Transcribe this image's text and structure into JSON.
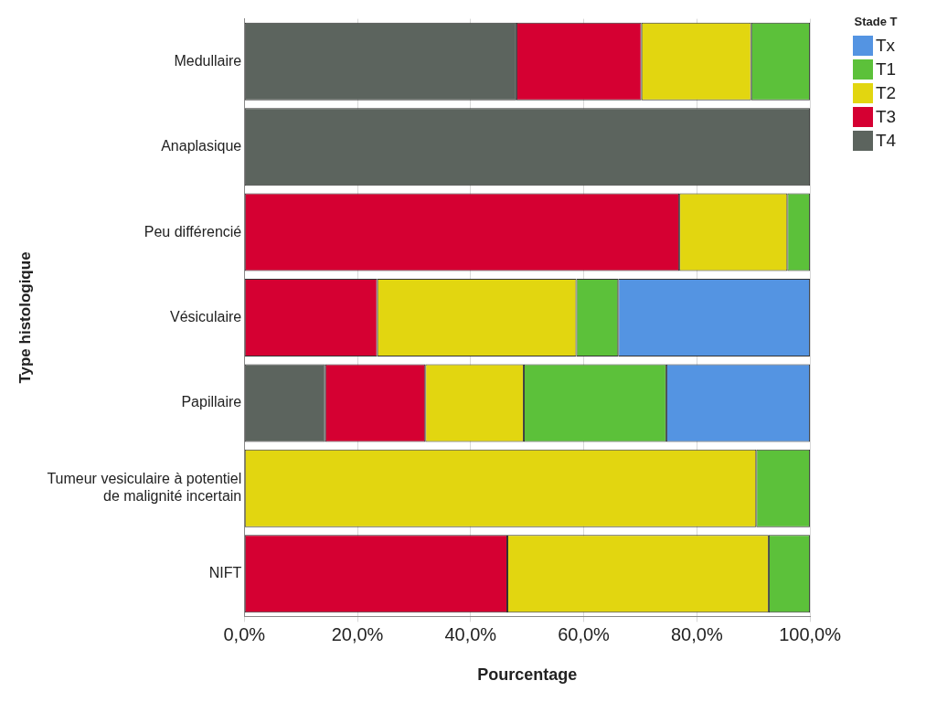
{
  "chart_data": {
    "type": "bar",
    "orientation": "horizontal",
    "stacked": true,
    "xlabel": "Pourcentage",
    "ylabel": "Type histologique",
    "legend_title": "Stade T",
    "legend": "top right",
    "grid": "x",
    "categories": [
      "Medullaire",
      "Anaplasique",
      "Peu différencié",
      "Vésiculaire",
      "Papillaire",
      "Tumeur vesiculaire à potentiel de malignité incertain",
      "NIFT"
    ],
    "xlim": [
      0,
      100
    ],
    "xticks": [
      {
        "value": 0,
        "label": "0,0%"
      },
      {
        "value": 20,
        "label": "20,0%"
      },
      {
        "value": 40,
        "label": "40,0%"
      },
      {
        "value": 60,
        "label": "60,0%"
      },
      {
        "value": 80,
        "label": "80,0%"
      },
      {
        "value": 100,
        "label": "100,0%"
      }
    ],
    "series": [
      {
        "name": "T4",
        "color": "#5c645e",
        "values": [
          48.1,
          100,
          null,
          null,
          14.3,
          null,
          null
        ]
      },
      {
        "name": "T3",
        "color": "#d50032",
        "values": [
          22.1,
          null,
          76.9,
          23.5,
          17.7,
          null,
          46.5
        ]
      },
      {
        "name": "T2",
        "color": "#e2d610",
        "values": [
          19.4,
          null,
          19.1,
          35.2,
          17.4,
          90.5,
          46.2
        ]
      },
      {
        "name": "T1",
        "color": "#5cc13a",
        "values": [
          10.4,
          null,
          4.0,
          7.4,
          25.2,
          9.5,
          7.3
        ]
      },
      {
        "name": "Tx",
        "color": "#5494e2",
        "values": [
          null,
          null,
          null,
          33.9,
          25.4,
          null,
          null
        ]
      }
    ]
  }
}
